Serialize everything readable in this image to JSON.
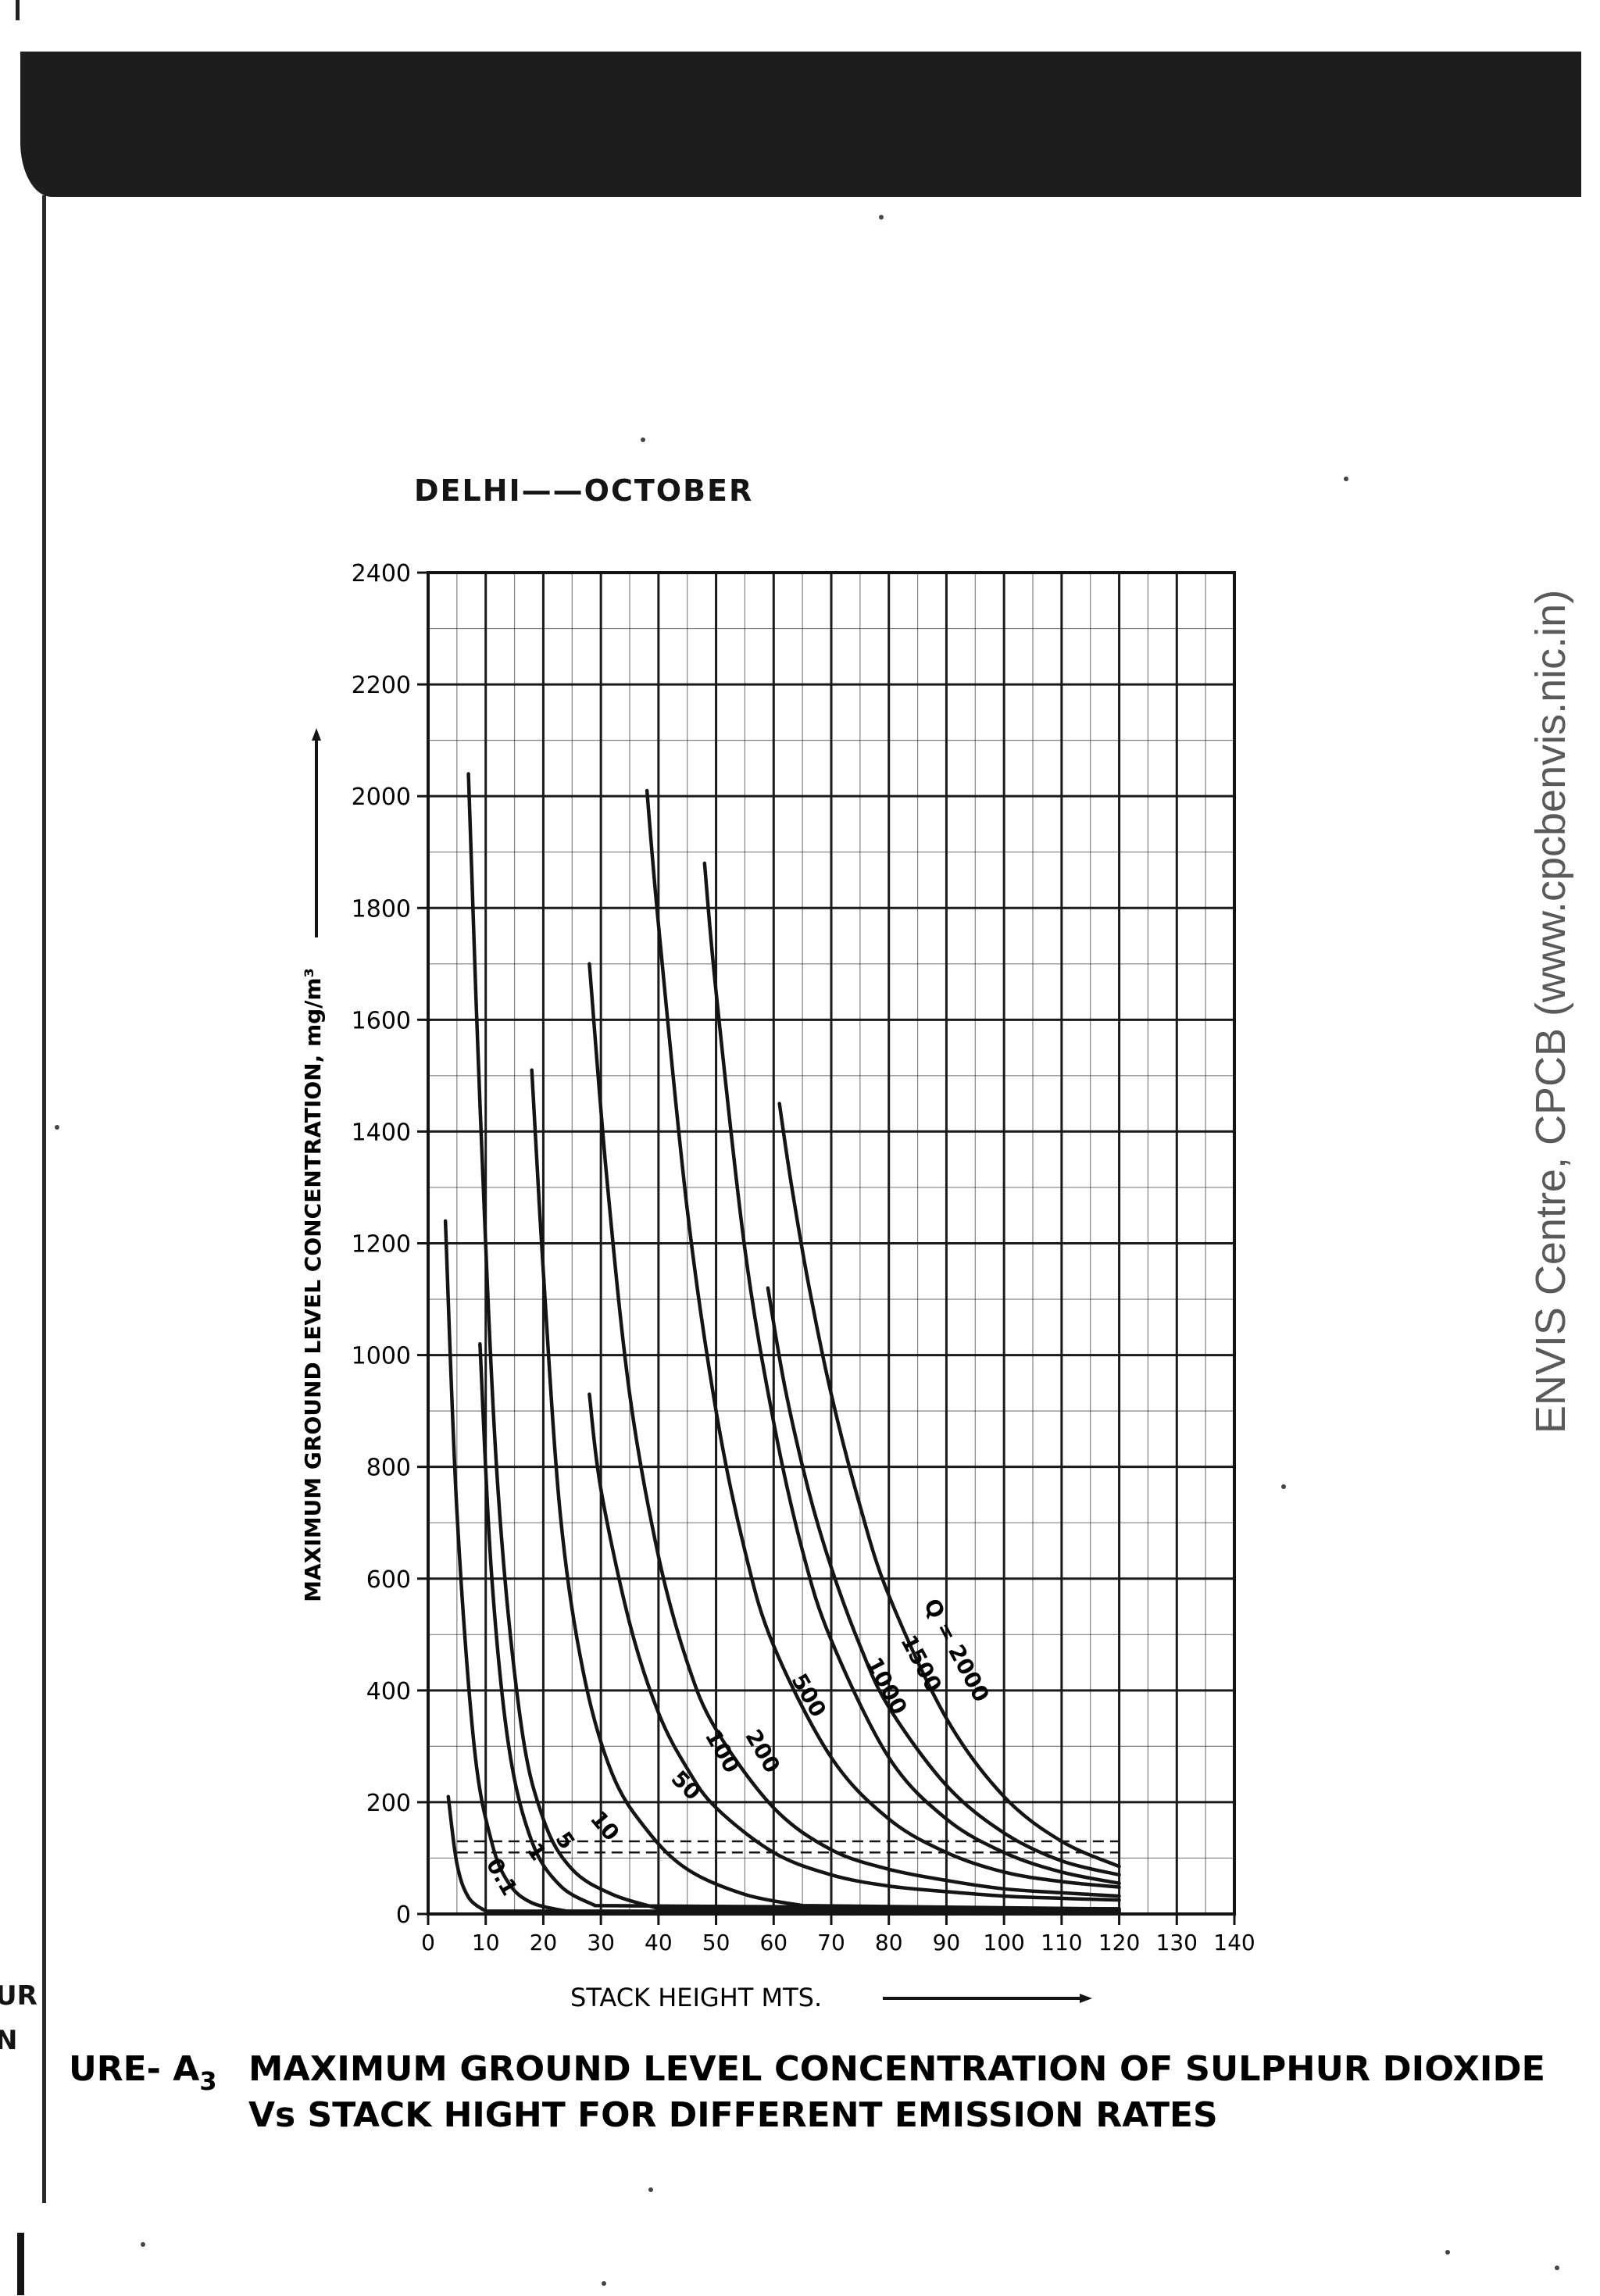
{
  "page": {
    "subtitle": "DELHI——OCTOBER",
    "caption_prefix": "URE- A",
    "caption_subscript": "3",
    "caption_line1": "MAXIMUM GROUND LEVEL CONCENTRATION OF SULPHUR DIOXIDE",
    "caption_line2": "Vs STACK HIGHT FOR DIFFERENT EMISSION RATES",
    "side_fragment_1": "UR",
    "side_fragment_2": "N",
    "watermark": "ENVIS Centre, CPCB (www.cpcbenvis.nic.in)"
  },
  "chart_data": {
    "type": "line",
    "title": "",
    "xlabel": "STACK HEIGHT MTS.",
    "ylabel": "MAXIMUM GROUND LEVEL CONCENTRATION, mg/m³",
    "xlim": [
      0,
      140
    ],
    "ylim": [
      0,
      2400
    ],
    "xticks": [
      0,
      10,
      20,
      30,
      40,
      50,
      60,
      70,
      80,
      90,
      100,
      110,
      120,
      130,
      140
    ],
    "yticks": [
      0,
      200,
      400,
      600,
      800,
      1000,
      1200,
      1400,
      1600,
      1800,
      2000,
      2200,
      2400
    ],
    "grid": true,
    "series": [
      {
        "name": "0.1",
        "x": [
          3.5,
          5,
          7,
          10
        ],
        "y": [
          210,
          90,
          30,
          5
        ]
      },
      {
        "name": "1",
        "x": [
          3,
          5,
          8,
          11,
          14,
          18,
          24
        ],
        "y": [
          1240,
          720,
          300,
          130,
          55,
          20,
          5
        ]
      },
      {
        "name": "5",
        "x": [
          9,
          11,
          14,
          18,
          23,
          29
        ],
        "y": [
          1020,
          610,
          300,
          130,
          50,
          15
        ]
      },
      {
        "name": "10",
        "x": [
          7,
          9,
          12,
          16,
          20,
          25,
          32,
          40
        ],
        "y": [
          2040,
          1450,
          780,
          350,
          170,
          80,
          35,
          10
        ]
      },
      {
        "name": "50",
        "x": [
          18,
          20,
          23,
          27,
          32,
          38,
          45,
          55,
          65
        ],
        "y": [
          1510,
          1150,
          710,
          430,
          250,
          150,
          80,
          35,
          15
        ]
      },
      {
        "name": "100",
        "x": [
          28,
          30,
          35,
          40,
          45,
          50,
          60,
          70,
          80,
          90,
          100,
          110,
          120
        ],
        "y": [
          930,
          760,
          520,
          360,
          260,
          190,
          110,
          70,
          50,
          40,
          32,
          28,
          25
        ]
      },
      {
        "name": "200",
        "x": [
          28,
          31,
          35,
          40,
          45,
          50,
          60,
          70,
          80,
          90,
          100,
          110,
          120
        ],
        "y": [
          1700,
          1320,
          930,
          640,
          450,
          330,
          190,
          115,
          80,
          60,
          45,
          38,
          32
        ]
      },
      {
        "name": "500",
        "x": [
          38,
          40,
          45,
          50,
          55,
          60,
          70,
          80,
          90,
          100,
          110,
          120
        ],
        "y": [
          2010,
          1770,
          1260,
          900,
          650,
          480,
          280,
          170,
          110,
          75,
          58,
          48
        ]
      },
      {
        "name": "1000",
        "x": [
          48,
          50,
          55,
          60,
          65,
          70,
          80,
          90,
          100,
          110,
          120
        ],
        "y": [
          1880,
          1650,
          1190,
          880,
          650,
          490,
          280,
          170,
          110,
          75,
          55
        ]
      },
      {
        "name": "1500",
        "x": [
          59,
          62,
          66,
          70,
          75,
          80,
          90,
          100,
          110,
          120
        ],
        "y": [
          1120,
          940,
          760,
          620,
          480,
          370,
          230,
          145,
          95,
          70
        ]
      },
      {
        "name": "Q = 2000",
        "x": [
          61,
          63,
          66,
          70,
          75,
          80,
          90,
          100,
          110,
          120
        ],
        "y": [
          1450,
          1310,
          1130,
          930,
          730,
          570,
          350,
          210,
          130,
          85
        ]
      }
    ],
    "reference_lines_dashed": [
      {
        "y": 130,
        "x_range": [
          5,
          120
        ]
      },
      {
        "y": 110,
        "x_range": [
          5,
          120
        ]
      }
    ],
    "curve_labels": [
      {
        "text": "0.1",
        "x": 10,
        "y": 90,
        "rotate": 60
      },
      {
        "text": "1",
        "x": 17,
        "y": 115,
        "rotate": 55
      },
      {
        "text": "5",
        "x": 22,
        "y": 135,
        "rotate": 55
      },
      {
        "text": "10",
        "x": 28,
        "y": 170,
        "rotate": 50
      },
      {
        "text": "50",
        "x": 42,
        "y": 240,
        "rotate": 45
      },
      {
        "text": "100",
        "x": 48,
        "y": 320,
        "rotate": 60
      },
      {
        "text": "200",
        "x": 55,
        "y": 320,
        "rotate": 60
      },
      {
        "text": "500",
        "x": 63,
        "y": 420,
        "rotate": 60
      },
      {
        "text": "1000",
        "x": 76,
        "y": 450,
        "rotate": 62
      },
      {
        "text": "1500",
        "x": 82,
        "y": 490,
        "rotate": 62
      },
      {
        "text": "Q = 2000",
        "x": 86,
        "y": 555,
        "rotate": 62
      }
    ]
  }
}
